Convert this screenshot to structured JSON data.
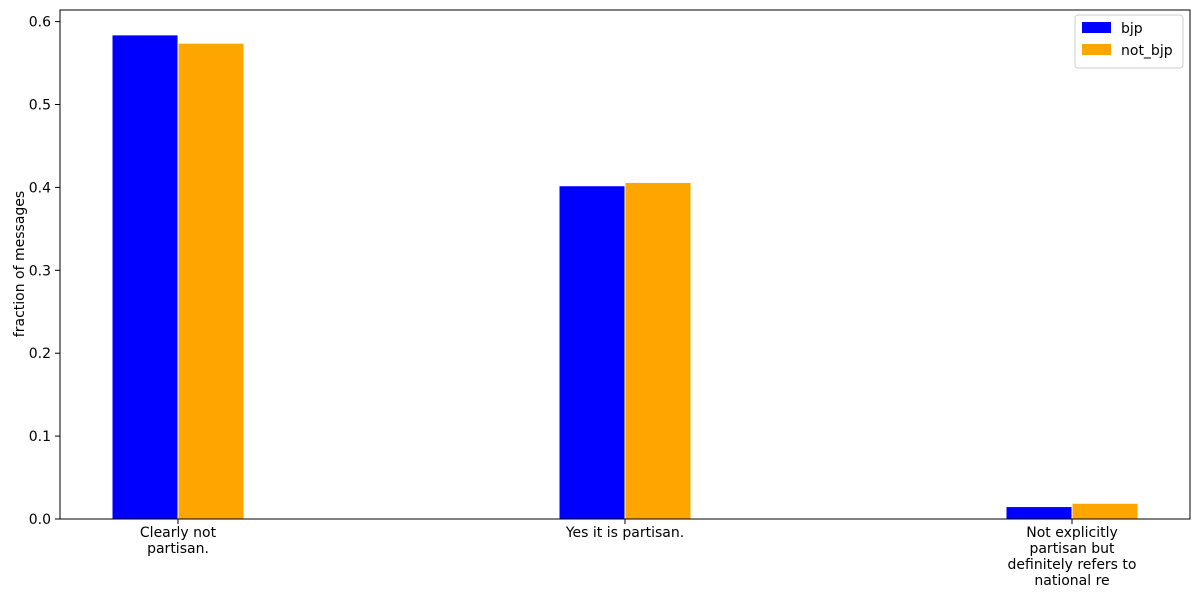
{
  "chart_data": {
    "type": "bar",
    "title": "",
    "xlabel": "",
    "ylabel": "fraction of messages",
    "categories": [
      [
        "Clearly not",
        "partisan."
      ],
      [
        "Yes it is partisan."
      ],
      [
        "Not explicitly",
        "partisan but",
        "definitely refers to",
        "national re"
      ]
    ],
    "series": [
      {
        "name": "bjp",
        "color": "#0000ff",
        "values": [
          0.584,
          0.402,
          0.015
        ]
      },
      {
        "name": "not_bjp",
        "color": "#ffa500",
        "values": [
          0.574,
          0.406,
          0.019
        ]
      }
    ],
    "ylim": [
      0,
      0.614
    ],
    "yticks": [
      0.0,
      0.1,
      0.2,
      0.3,
      0.4,
      0.5,
      0.6
    ],
    "ytick_labels": [
      "0.0",
      "0.1",
      "0.2",
      "0.3",
      "0.4",
      "0.5",
      "0.6"
    ],
    "grid": false,
    "legend_position": "top-right"
  }
}
